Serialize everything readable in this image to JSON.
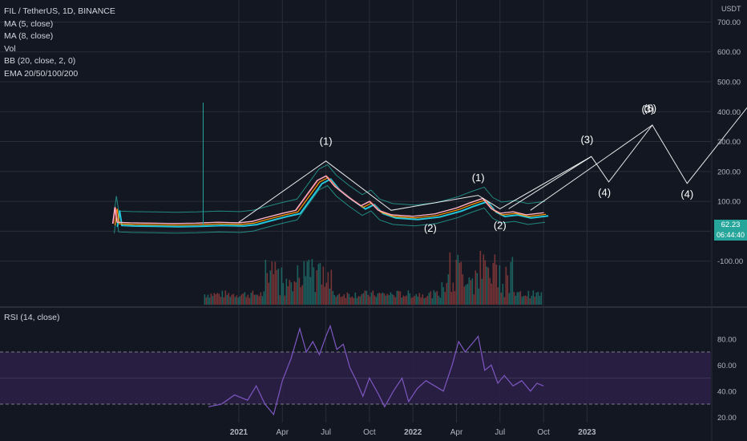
{
  "header": {
    "title": "FIL / TetherUS, 1D, BINANCE",
    "indicators": [
      "MA (5, close)",
      "MA (8, close)",
      "Vol",
      "BB (20, close, 2, 0)",
      "EMA 20/50/100/200"
    ]
  },
  "price_axis": {
    "unit": "USDT",
    "last_price": "62.23",
    "countdown": "06:44:40"
  },
  "rsi_panel": {
    "title": "RSI (14, close)"
  },
  "colors": {
    "background": "#131722",
    "grid": "#2a2e39",
    "wave": "#ffffff",
    "rsi_line": "#7e57c2",
    "rsi_band": "#2a1f45",
    "bb": "#26a69a",
    "ema": "#26c6da",
    "ma": "#ef5350",
    "ma2": "#ff9800",
    "price_tag": "#26a69a",
    "vol_up": "#1f6f68",
    "vol_down": "#8a3a3a"
  },
  "chart_data": [
    {
      "type": "line",
      "name": "price",
      "x_tick_labels": [
        "2021",
        "Apr",
        "Jul",
        "Oct",
        "2022",
        "Apr",
        "Jul",
        "Oct",
        "2023"
      ],
      "y_tick_labels": [
        "700.00",
        "600.00",
        "500.00",
        "400.00",
        "300.00",
        "200.00",
        "100.00",
        "0.00",
        "-100.00"
      ],
      "ylim": [
        -160,
        720
      ],
      "price_path": [
        [
          -2.9,
          25
        ],
        [
          -2.85,
          80
        ],
        [
          -2.8,
          30
        ],
        [
          -2.5,
          28
        ],
        [
          -2.0,
          27
        ],
        [
          -1.5,
          26
        ],
        [
          -1.0,
          27
        ],
        [
          -0.5,
          30
        ],
        [
          0,
          28
        ],
        [
          0.3,
          33
        ],
        [
          0.6,
          45
        ],
        [
          1.0,
          60
        ],
        [
          1.3,
          70
        ],
        [
          1.6,
          130
        ],
        [
          1.8,
          170
        ],
        [
          2.0,
          185
        ],
        [
          2.2,
          150
        ],
        [
          2.5,
          115
        ],
        [
          2.8,
          85
        ],
        [
          3.0,
          100
        ],
        [
          3.2,
          70
        ],
        [
          3.5,
          55
        ],
        [
          4.0,
          50
        ],
        [
          4.5,
          58
        ],
        [
          5.0,
          78
        ],
        [
          5.3,
          95
        ],
        [
          5.6,
          110
        ],
        [
          5.8,
          75
        ],
        [
          6.0,
          60
        ],
        [
          6.3,
          65
        ],
        [
          6.6,
          55
        ],
        [
          7.0,
          62
        ]
      ],
      "wave_path": [
        [
          0,
          30
        ],
        [
          2.0,
          235
        ],
        [
          3.5,
          70
        ],
        [
          5.5,
          120
        ],
        [
          6.0,
          75
        ],
        [
          8.1,
          250
        ],
        [
          8.5,
          165
        ],
        [
          9.5,
          355
        ],
        [
          10.3,
          160
        ],
        [
          12.5,
          565
        ]
      ],
      "wave_path_2": [
        [
          6.2,
          75
        ],
        [
          8.1,
          250
        ]
      ],
      "wave_path_3": [
        [
          6.7,
          70
        ],
        [
          9.5,
          355
        ]
      ],
      "wave_labels": [
        {
          "label": "(1)",
          "x": 2.0,
          "y": 290
        },
        {
          "label": "(2)",
          "x": 4.4,
          "y": -2
        },
        {
          "label": "(1)",
          "x": 5.5,
          "y": 167
        },
        {
          "label": "(2)",
          "x": 6.0,
          "y": 8
        },
        {
          "label": "(3)",
          "x": 8.0,
          "y": 295
        },
        {
          "label": "(4)",
          "x": 8.4,
          "y": 118
        },
        {
          "label": "(3)",
          "x": 9.4,
          "y": 397
        },
        {
          "label": "(5)",
          "x": 9.45,
          "y": 400
        },
        {
          "label": "(4)",
          "x": 10.3,
          "y": 112
        },
        {
          "label": "(5)",
          "x": 12.5,
          "y": 605
        }
      ]
    },
    {
      "type": "line",
      "name": "RSI",
      "y_tick_labels": [
        "80.00",
        "60.00",
        "40.00",
        "20.00"
      ],
      "ylim": [
        14,
        94
      ],
      "band": [
        30,
        70
      ],
      "midline": 50,
      "values": [
        [
          -0.7,
          28
        ],
        [
          -0.4,
          30
        ],
        [
          -0.1,
          37
        ],
        [
          0.2,
          33
        ],
        [
          0.4,
          44
        ],
        [
          0.6,
          30
        ],
        [
          0.8,
          22
        ],
        [
          1.0,
          48
        ],
        [
          1.2,
          65
        ],
        [
          1.4,
          88
        ],
        [
          1.55,
          70
        ],
        [
          1.7,
          78
        ],
        [
          1.85,
          68
        ],
        [
          2.0,
          82
        ],
        [
          2.1,
          90
        ],
        [
          2.25,
          72
        ],
        [
          2.4,
          76
        ],
        [
          2.55,
          58
        ],
        [
          2.7,
          48
        ],
        [
          2.85,
          36
        ],
        [
          3.0,
          50
        ],
        [
          3.2,
          38
        ],
        [
          3.35,
          28
        ],
        [
          3.55,
          40
        ],
        [
          3.75,
          50
        ],
        [
          3.9,
          32
        ],
        [
          4.1,
          42
        ],
        [
          4.3,
          48
        ],
        [
          4.5,
          44
        ],
        [
          4.7,
          40
        ],
        [
          4.9,
          60
        ],
        [
          5.05,
          78
        ],
        [
          5.2,
          70
        ],
        [
          5.35,
          76
        ],
        [
          5.5,
          82
        ],
        [
          5.65,
          56
        ],
        [
          5.8,
          60
        ],
        [
          5.95,
          46
        ],
        [
          6.1,
          52
        ],
        [
          6.3,
          44
        ],
        [
          6.5,
          48
        ],
        [
          6.7,
          40
        ],
        [
          6.85,
          46
        ],
        [
          7.0,
          44
        ]
      ]
    }
  ]
}
